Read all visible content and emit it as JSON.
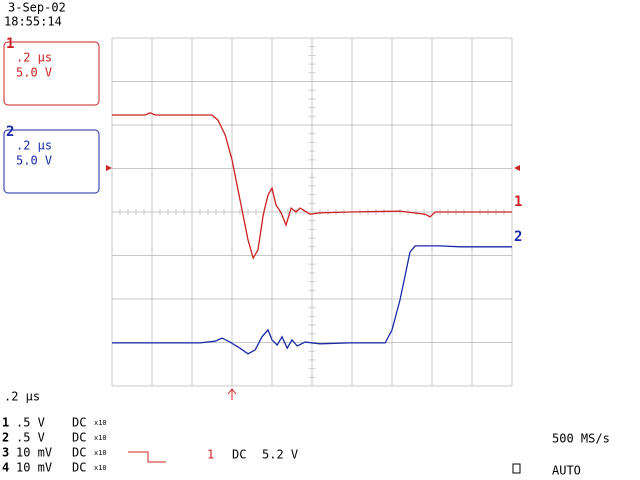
{
  "header": {
    "date": "3-Sep-02",
    "time": "18:55:14"
  },
  "timebase": ".2 µs",
  "channels": [
    {
      "name": "1",
      "color": "#cc2020",
      "box_time": ".2 µs",
      "box_volts": "5.0 V",
      "volts_div": ".5  V",
      "coupling": "DC",
      "probe": "x10",
      "trace": {
        "x": [
          0,
          0.83,
          0.95,
          1.08,
          2.5,
          2.65,
          2.83,
          3.0,
          3.2,
          3.4,
          3.53,
          3.65,
          3.78,
          3.9,
          4.0,
          4.1,
          4.23,
          4.35,
          4.48,
          4.6,
          4.7,
          4.95,
          5.2,
          5.95,
          7.2,
          7.83,
          7.95,
          8.08,
          8.7,
          10
        ],
        "y": [
          2.23,
          2.23,
          2.28,
          2.23,
          2.23,
          2.11,
          1.77,
          1.2,
          0.28,
          -0.64,
          -1.06,
          -0.87,
          -0.07,
          0.39,
          0.55,
          0.16,
          -0.02,
          -0.3,
          0.09,
          0,
          0.09,
          -0.05,
          -0.02,
          0,
          0.02,
          -0.05,
          -0.11,
          0,
          0,
          0
        ]
      }
    },
    {
      "name": "2",
      "color": "#1a2aa8",
      "box_time": ".2 µs",
      "box_volts": "5.0 V",
      "volts_div": ".5  V",
      "coupling": "DC",
      "probe": "x10",
      "trace": {
        "x": [
          0,
          2.2,
          2.58,
          2.75,
          2.95,
          3.2,
          3.4,
          3.58,
          3.75,
          3.9,
          4.0,
          4.13,
          4.25,
          4.38,
          4.5,
          4.63,
          4.83,
          5.2,
          5.95,
          6.83,
          7.0,
          7.2,
          7.33,
          7.45,
          7.58,
          8.2,
          8.7,
          10
        ],
        "y": [
          -3.01,
          -3.01,
          -2.97,
          -2.9,
          -2.99,
          -3.13,
          -3.26,
          -3.17,
          -2.87,
          -2.71,
          -2.94,
          -3.06,
          -2.87,
          -3.13,
          -2.94,
          -3.08,
          -2.99,
          -3.03,
          -3.01,
          -3.01,
          -2.71,
          -2.02,
          -1.45,
          -0.92,
          -0.78,
          -0.78,
          -0.8,
          -0.8
        ]
      }
    },
    {
      "name": "3",
      "volts_div": "10 mV",
      "coupling": "DC",
      "probe": "x10"
    },
    {
      "name": "4",
      "volts_div": "10 mV",
      "coupling": "DC",
      "probe": "x10"
    }
  ],
  "trigger": {
    "channel": "1",
    "coupling": "DC",
    "level": "5.2 V"
  },
  "sample_rate": "500 MS/s",
  "mode": "AUTO",
  "grid": {
    "xlim": [
      0,
      10
    ],
    "ylim": [
      -4,
      4
    ]
  }
}
